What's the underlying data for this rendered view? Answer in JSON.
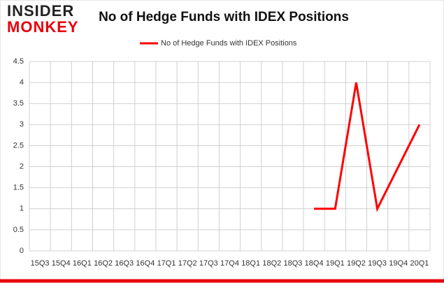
{
  "logo": {
    "line1": "INSIDER",
    "line2": "MONKEY"
  },
  "chart_data": {
    "type": "line",
    "title": "No of Hedge Funds with IDEX Positions",
    "categories": [
      "15Q3",
      "15Q4",
      "16Q1",
      "16Q2",
      "16Q3",
      "16Q4",
      "17Q1",
      "17Q2",
      "17Q3",
      "17Q4",
      "18Q1",
      "18Q2",
      "18Q3",
      "18Q4",
      "19Q1",
      "19Q2",
      "19Q3",
      "19Q4",
      "20Q1"
    ],
    "series": [
      {
        "name": "No of Hedge Funds with IDEX Positions",
        "color": "#ff0000",
        "values": [
          null,
          null,
          null,
          null,
          null,
          null,
          null,
          null,
          null,
          null,
          null,
          null,
          null,
          1,
          1,
          4,
          1,
          2,
          3
        ]
      }
    ],
    "ylim": [
      0,
      4.5
    ],
    "yticks": [
      0,
      0.5,
      1,
      1.5,
      2,
      2.5,
      3,
      3.5,
      4,
      4.5
    ],
    "grid": true,
    "legend": "top"
  }
}
